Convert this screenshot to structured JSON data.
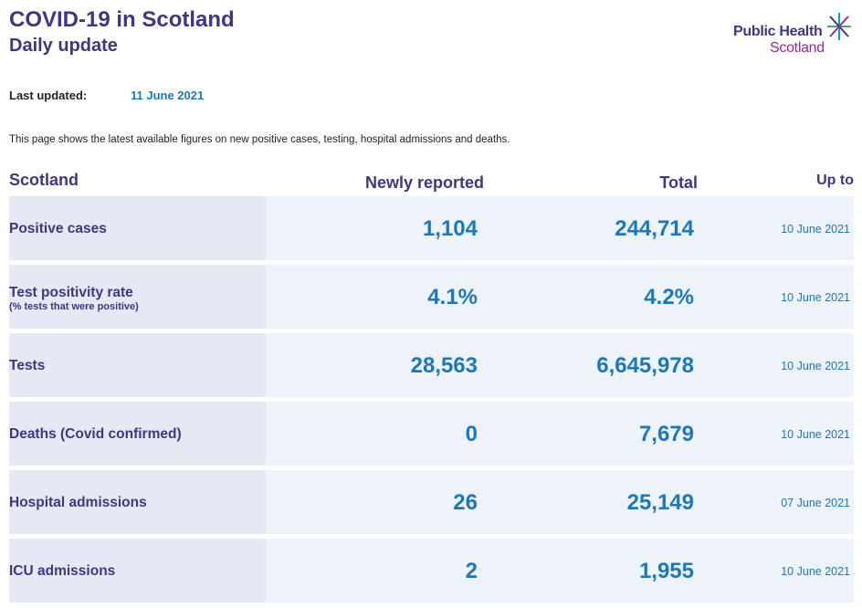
{
  "header": {
    "title": "COVID-19 in Scotland",
    "subtitle": "Daily update",
    "logo_line1": "Public Health",
    "logo_line2": "Scotland"
  },
  "updated": {
    "label": "Last updated:",
    "value": "11 June 2021"
  },
  "intro": "This page shows the latest available figures on new positive cases, testing, hospital admissions and deaths.",
  "table": {
    "columns": {
      "region": "Scotland",
      "new": "Newly reported",
      "total": "Total",
      "upto": "Up to"
    },
    "rows": [
      {
        "label": "Positive cases",
        "sublabel": "",
        "new": "1,104",
        "total": "244,714",
        "date": "10 June 2021"
      },
      {
        "label": "Test positivity rate",
        "sublabel": "(% tests that were positive)",
        "new": "4.1%",
        "total": "4.2%",
        "date": "10 June 2021"
      },
      {
        "label": "Tests",
        "sublabel": "",
        "new": "28,563",
        "total": "6,645,978",
        "date": "10 June 2021"
      },
      {
        "label": "Deaths (Covid confirmed)",
        "sublabel": "",
        "new": "0",
        "total": "7,679",
        "date": "10 June 2021"
      },
      {
        "label": "Hospital admissions",
        "sublabel": "",
        "new": "26",
        "total": "25,149",
        "date": "07 June 2021"
      },
      {
        "label": "ICU admissions",
        "sublabel": "",
        "new": "2",
        "total": "1,955",
        "date": "10 June 2021"
      }
    ]
  },
  "colors": {
    "brand_purple": "#3f3685",
    "accent_blue": "#1a78c2",
    "logo_magenta": "#9b2a8c",
    "logo_green": "#4dab5a",
    "logo_cyan": "#00a3d9"
  }
}
